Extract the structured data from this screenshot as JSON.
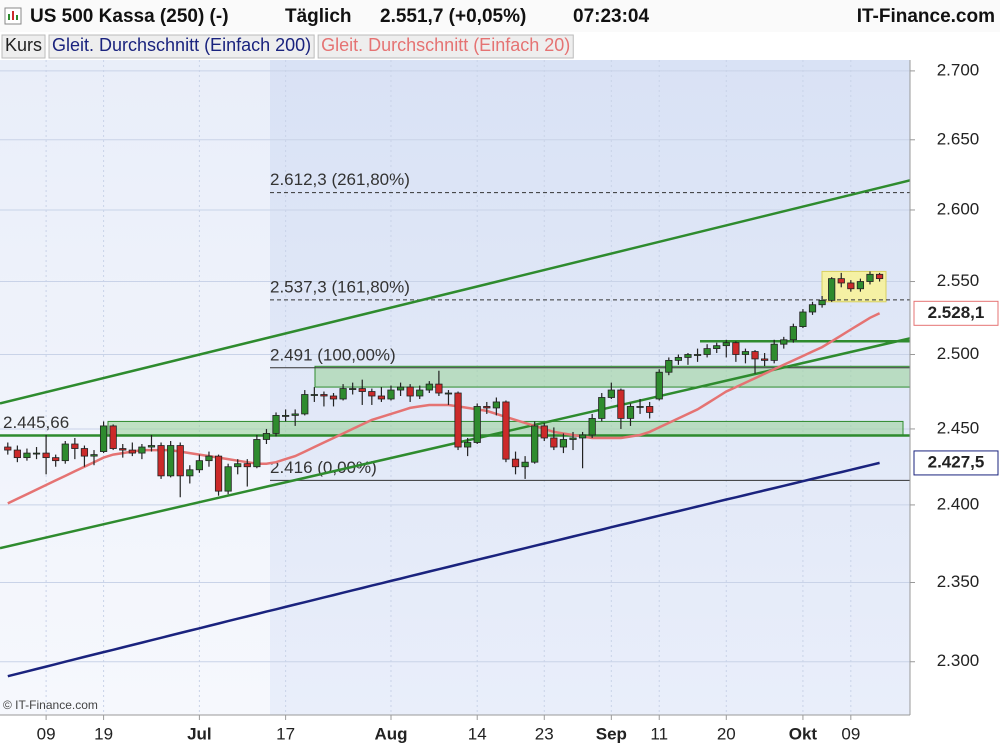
{
  "header": {
    "instrument": "US 500 Kassa (250) (-)",
    "interval": "Täglich",
    "quote": "2.551,7 (+0,05%)",
    "time": "07:23:04",
    "site": "IT-Finance.com"
  },
  "chart_data": {
    "type": "candlestick",
    "log_scale": true,
    "grid": true,
    "up_color": "#2e8b2e",
    "down_color": "#cc2a2a",
    "copyright": "© IT-Finance.com",
    "ylim": [
      2267,
      2708
    ],
    "yticks": [
      {
        "value": 2300,
        "label": "2.300"
      },
      {
        "value": 2350,
        "label": "2.350"
      },
      {
        "value": 2400,
        "label": "2.400"
      },
      {
        "value": 2450,
        "label": "2.450"
      },
      {
        "value": 2500,
        "label": "2.500"
      },
      {
        "value": 2550,
        "label": "2.550"
      },
      {
        "value": 2600,
        "label": "2.600"
      },
      {
        "value": 2650,
        "label": "2.650"
      },
      {
        "value": 2700,
        "label": "2.700"
      }
    ],
    "categories": [
      null,
      null,
      null,
      null,
      "09",
      null,
      null,
      null,
      null,
      null,
      "19",
      null,
      null,
      null,
      null,
      null,
      null,
      null,
      null,
      null,
      "Jul",
      null,
      null,
      null,
      null,
      null,
      null,
      null,
      null,
      "17",
      null,
      null,
      null,
      null,
      null,
      null,
      null,
      null,
      null,
      null,
      "Aug",
      null,
      null,
      null,
      null,
      null,
      null,
      null,
      null,
      "14",
      null,
      null,
      null,
      null,
      null,
      null,
      "23",
      null,
      null,
      null,
      null,
      null,
      null,
      "Sep",
      null,
      null,
      null,
      null,
      "11",
      null,
      null,
      null,
      null,
      null,
      null,
      "20",
      null,
      null,
      null,
      null,
      null,
      null,
      null,
      "Okt",
      null,
      null,
      null,
      null,
      "09",
      null,
      null,
      null
    ],
    "series": [
      {
        "name": "Kurs",
        "color": "#222222",
        "ohlc": [
          [
            2438,
            2441,
            2433,
            2436
          ],
          [
            2436,
            2439,
            2428,
            2431
          ],
          [
            2431,
            2437,
            2429,
            2434
          ],
          [
            2434,
            2438,
            2430,
            2434
          ],
          [
            2434,
            2446,
            2420,
            2431
          ],
          [
            2431,
            2433,
            2425,
            2429
          ],
          [
            2429,
            2442,
            2427,
            2440
          ],
          [
            2440,
            2444,
            2430,
            2437
          ],
          [
            2437,
            2439,
            2425,
            2432
          ],
          [
            2432,
            2436,
            2426,
            2433
          ],
          [
            2435,
            2455,
            2434,
            2452
          ],
          [
            2452,
            2453,
            2436,
            2437
          ],
          [
            2437,
            2440,
            2431,
            2436
          ],
          [
            2436,
            2441,
            2432,
            2434
          ],
          [
            2434,
            2440,
            2430,
            2438
          ],
          [
            2438,
            2446,
            2435,
            2439
          ],
          [
            2439,
            2441,
            2417,
            2419
          ],
          [
            2419,
            2442,
            2418,
            2439
          ],
          [
            2439,
            2441,
            2405,
            2419
          ],
          [
            2419,
            2426,
            2414,
            2423
          ],
          [
            2423,
            2433,
            2421,
            2429
          ],
          [
            2429,
            2435,
            2425,
            2432
          ],
          [
            2432,
            2433,
            2406,
            2409
          ],
          [
            2409,
            2427,
            2407,
            2425
          ],
          [
            2425,
            2430,
            2420,
            2427
          ],
          [
            2427,
            2430,
            2412,
            2425
          ],
          [
            2425,
            2446,
            2424,
            2443
          ],
          [
            2443,
            2450,
            2440,
            2447
          ],
          [
            2447,
            2461,
            2445,
            2459
          ],
          [
            2459,
            2463,
            2455,
            2459
          ],
          [
            2459,
            2463,
            2452,
            2460
          ],
          [
            2460,
            2476,
            2459,
            2473
          ],
          [
            2473,
            2478,
            2468,
            2473
          ],
          [
            2473,
            2475,
            2465,
            2472
          ],
          [
            2472,
            2474,
            2465,
            2470
          ],
          [
            2470,
            2480,
            2469,
            2477
          ],
          [
            2477,
            2481,
            2473,
            2477
          ],
          [
            2477,
            2483,
            2466,
            2475
          ],
          [
            2475,
            2477,
            2466,
            2472
          ],
          [
            2472,
            2478,
            2468,
            2470
          ],
          [
            2470,
            2479,
            2469,
            2476
          ],
          [
            2476,
            2481,
            2472,
            2478
          ],
          [
            2478,
            2480,
            2468,
            2472
          ],
          [
            2472,
            2479,
            2470,
            2476
          ],
          [
            2476,
            2482,
            2474,
            2480
          ],
          [
            2480,
            2489,
            2472,
            2474
          ],
          [
            2474,
            2476,
            2466,
            2474
          ],
          [
            2474,
            2475,
            2436,
            2438
          ],
          [
            2438,
            2444,
            2432,
            2441
          ],
          [
            2441,
            2467,
            2440,
            2465
          ],
          [
            2465,
            2468,
            2460,
            2464
          ],
          [
            2464,
            2471,
            2459,
            2468
          ],
          [
            2468,
            2469,
            2428,
            2430
          ],
          [
            2430,
            2435,
            2420,
            2425
          ],
          [
            2425,
            2432,
            2417,
            2428
          ],
          [
            2428,
            2455,
            2427,
            2452
          ],
          [
            2452,
            2454,
            2442,
            2444
          ],
          [
            2444,
            2451,
            2436,
            2438
          ],
          [
            2438,
            2447,
            2434,
            2443
          ],
          [
            2443,
            2448,
            2436,
            2444
          ],
          [
            2444,
            2448,
            2424,
            2446
          ],
          [
            2446,
            2460,
            2444,
            2457
          ],
          [
            2457,
            2474,
            2455,
            2471
          ],
          [
            2471,
            2481,
            2470,
            2476
          ],
          [
            2476,
            2477,
            2450,
            2457
          ],
          [
            2457,
            2467,
            2452,
            2465
          ],
          [
            2465,
            2470,
            2460,
            2465
          ],
          [
            2465,
            2468,
            2457,
            2461
          ],
          [
            2470,
            2490,
            2469,
            2488
          ],
          [
            2488,
            2498,
            2486,
            2496
          ],
          [
            2496,
            2500,
            2493,
            2498
          ],
          [
            2498,
            2501,
            2493,
            2500
          ],
          [
            2500,
            2504,
            2495,
            2500
          ],
          [
            2500,
            2507,
            2498,
            2504
          ],
          [
            2504,
            2508,
            2501,
            2506
          ],
          [
            2506,
            2510,
            2498,
            2508
          ],
          [
            2508,
            2509,
            2495,
            2500
          ],
          [
            2500,
            2504,
            2494,
            2502
          ],
          [
            2502,
            2503,
            2487,
            2497
          ],
          [
            2497,
            2501,
            2492,
            2496
          ],
          [
            2496,
            2510,
            2494,
            2507
          ],
          [
            2507,
            2512,
            2504,
            2510
          ],
          [
            2510,
            2521,
            2508,
            2519
          ],
          [
            2519,
            2531,
            2518,
            2529
          ],
          [
            2529,
            2536,
            2527,
            2534
          ],
          [
            2534,
            2540,
            2532,
            2537
          ],
          [
            2537,
            2553,
            2536,
            2552
          ],
          [
            2552,
            2556,
            2546,
            2549
          ],
          [
            2549,
            2551,
            2543,
            2545
          ],
          [
            2545,
            2552,
            2543,
            2550
          ],
          [
            2550,
            2557,
            2548,
            2555
          ],
          [
            2555,
            2556,
            2550,
            2552
          ]
        ]
      },
      {
        "name": "Gleit. Durchschnitt (Einfach 200)",
        "color": "#1a237e",
        "end_label": {
          "value": 2427.5,
          "label": "2.427,5"
        },
        "values": [
          2291,
          2292.5,
          2294,
          2295.5,
          2297,
          2298.5,
          2300,
          2301.5,
          2303,
          2304.5,
          2306,
          2307.5,
          2309,
          2310.5,
          2312,
          2313.5,
          2315,
          2316.5,
          2318,
          2319.5,
          2321,
          2322.5,
          2324,
          2325.5,
          2327,
          2328.5,
          2330,
          2331.5,
          2333,
          2334.5,
          2336,
          2337.5,
          2339,
          2340.5,
          2342,
          2343.5,
          2345,
          2346.5,
          2348,
          2349.5,
          2351,
          2352.5,
          2354,
          2355.5,
          2357,
          2358.5,
          2360,
          2361.5,
          2363,
          2364.5,
          2366,
          2367.5,
          2369,
          2370.5,
          2372,
          2373.5,
          2375,
          2376.5,
          2378,
          2379.5,
          2381,
          2382.5,
          2384,
          2385.5,
          2387,
          2388.5,
          2390,
          2391.5,
          2393,
          2394.5,
          2396,
          2397.5,
          2399,
          2400.5,
          2402,
          2403.5,
          2405,
          2406.5,
          2408,
          2409.5,
          2411,
          2412.5,
          2414,
          2415.5,
          2417,
          2418.5,
          2420,
          2421.5,
          2423,
          2424.5,
          2426,
          2427.5
        ]
      },
      {
        "name": "Gleit. Durchschnitt (Einfach 20)",
        "color": "#e57373",
        "end_label": {
          "value": 2528.1,
          "label": "2.528,1"
        },
        "values": [
          2401,
          2404,
          2407,
          2410,
          2413,
          2416,
          2419,
          2422,
          2425,
          2428,
          2431,
          2433,
          2434,
          2435,
          2436,
          2436,
          2436,
          2436,
          2435,
          2434,
          2433,
          2432,
          2431,
          2430,
          2429,
          2428,
          2427,
          2427,
          2428,
          2430,
          2432,
          2435,
          2438,
          2441,
          2444,
          2447,
          2450,
          2453,
          2456,
          2458,
          2460,
          2462,
          2464,
          2465,
          2466,
          2466,
          2466,
          2465,
          2464,
          2463,
          2462,
          2460,
          2458,
          2456,
          2454,
          2452,
          2450,
          2448,
          2447,
          2446,
          2445,
          2444,
          2444,
          2444,
          2444,
          2445,
          2446,
          2448,
          2451,
          2454,
          2457,
          2460,
          2463,
          2467,
          2471,
          2475,
          2478,
          2481,
          2484,
          2487,
          2490,
          2493,
          2496,
          2499,
          2502,
          2505,
          2509,
          2513,
          2517,
          2521,
          2525,
          2528.1
        ]
      }
    ],
    "fibonacci": [
      {
        "value": 2612.3,
        "label": "2.612,3 (261,80%)",
        "style": "dashed"
      },
      {
        "value": 2537.3,
        "label": "2.537,3 (161,80%)",
        "style": "dashed"
      },
      {
        "value": 2491,
        "label": "2.491 (100,00%)",
        "style": "solid"
      },
      {
        "value": 2416,
        "label": "2.416 (0,00%)",
        "style": "solid"
      }
    ],
    "support_lines": [
      {
        "value": 2445.66,
        "label": "2.445,66"
      },
      {
        "value": 2509
      }
    ],
    "trendlines": [
      {
        "start": 2467,
        "end": 2621
      },
      {
        "start": 2372,
        "end": 2511
      }
    ],
    "zones": [
      {
        "from": 2478,
        "to": 2492
      },
      {
        "from": 2446,
        "to": 2455
      }
    ],
    "highlight": {
      "from": 2536,
      "to": 2557
    }
  }
}
